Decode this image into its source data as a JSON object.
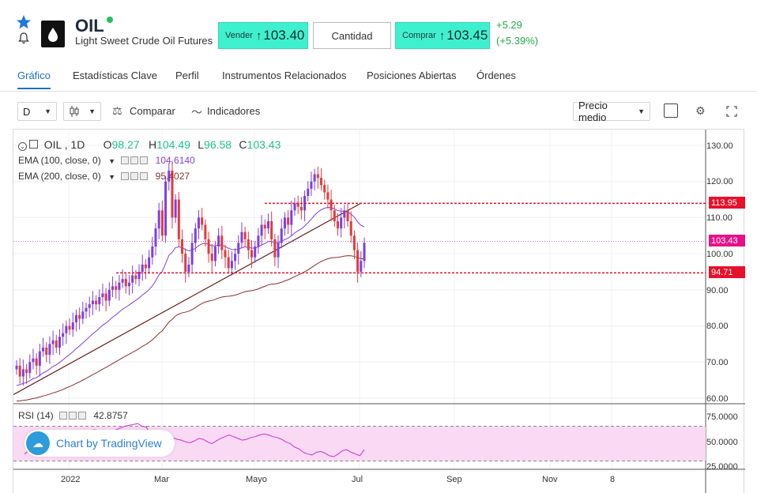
{
  "header": {
    "symbol": "OIL",
    "description": "Light Sweet Crude Oil Futures",
    "sell": {
      "label": "Vender",
      "value": "103.40"
    },
    "quantity_label": "Cantidad",
    "buy": {
      "label": "Comprar",
      "value": "103.45"
    },
    "change_abs": "+5.29",
    "change_pct": "(+5.39%)"
  },
  "tabs": [
    {
      "label": "Gráfico",
      "active": true
    },
    {
      "label": "Estadísticas Clave"
    },
    {
      "label": "Perfil"
    },
    {
      "label": "Instrumentos Relacionados"
    },
    {
      "label": "Posiciones Abiertas"
    },
    {
      "label": "Órdenes"
    }
  ],
  "toolbar": {
    "interval": "D",
    "compare": "Comparar",
    "indicators": "Indicadores",
    "price_type": "Precio medio"
  },
  "chart_data": {
    "type": "candlestick",
    "legend": {
      "symbol": "OIL , 1D",
      "open_label": "O",
      "open": "98.27",
      "high_label": "H",
      "high": "104.49",
      "low_label": "L",
      "low": "96.58",
      "close_label": "C",
      "close": "103.43",
      "ema100_label": "EMA (100, close, 0)",
      "ema100_value": "104.6140",
      "ema200_label": "EMA (200, close, 0)",
      "ema200_value": "95.4027",
      "rsi_label": "RSI (14)",
      "rsi_value": "42.8757"
    },
    "price_axis": [
      "130.00",
      "120.00",
      "110.00",
      "100.00",
      "90.00",
      "80.00",
      "70.00",
      "60.00"
    ],
    "price_range": [
      60,
      130
    ],
    "rsi_axis": [
      "75.0000",
      "50.0000",
      "25.0000"
    ],
    "rsi_range": [
      25,
      75
    ],
    "x_labels": [
      "2022",
      "Mar",
      "Mayo",
      "Jul",
      "Sep",
      "Nov",
      "8"
    ],
    "tags": {
      "resistance": "113.95",
      "last": "103.43",
      "support": "94.71"
    },
    "levels": {
      "resistance": 113.95,
      "last": 103.43,
      "support": 94.71
    },
    "colors": {
      "up": "#7b3fe4",
      "down": "#e23b3b",
      "ema100": "#7b3fe4",
      "ema200": "#8b2e2e",
      "level": "#e8102a",
      "last_tag": "#e8108a",
      "rsi": "#cc33cc"
    },
    "closes": [
      69,
      66,
      68,
      67,
      70,
      71,
      69,
      73,
      74,
      72,
      75,
      76,
      74,
      77,
      78,
      80,
      79,
      81,
      83,
      82,
      84,
      85,
      86,
      87,
      86,
      88,
      89,
      87,
      90,
      91,
      90,
      92,
      93,
      91,
      92,
      94,
      93,
      95,
      97,
      96,
      99,
      102,
      107,
      112,
      105,
      120,
      123,
      110,
      115,
      104,
      100,
      95,
      97,
      103,
      107,
      110,
      108,
      104,
      100,
      98,
      102,
      105,
      101,
      99,
      96,
      98,
      100,
      103,
      106,
      104,
      101,
      99,
      102,
      105,
      108,
      107,
      109,
      104,
      99,
      103,
      107,
      110,
      108,
      112,
      114,
      113,
      112,
      116,
      118,
      120,
      122,
      121,
      119,
      117,
      115,
      112,
      109,
      107,
      110,
      112,
      109,
      105,
      101,
      95,
      98,
      103
    ],
    "rsi": [
      38,
      42,
      46,
      48,
      52,
      55,
      56,
      58,
      60,
      62,
      60,
      63,
      64,
      62,
      65,
      64,
      66,
      65,
      63,
      64,
      62,
      66,
      68,
      70,
      71,
      72,
      73,
      70,
      69,
      58,
      54,
      55,
      56,
      58,
      57,
      55,
      54,
      52,
      51,
      53,
      56,
      55,
      52,
      50,
      53,
      56,
      58,
      60,
      58,
      56,
      54,
      55,
      57,
      58,
      60,
      61,
      60,
      58,
      57,
      55,
      52,
      50,
      46,
      44,
      40,
      38,
      37,
      40,
      41,
      39,
      36,
      35,
      38,
      42,
      43,
      40,
      38,
      36,
      43
    ]
  }
}
